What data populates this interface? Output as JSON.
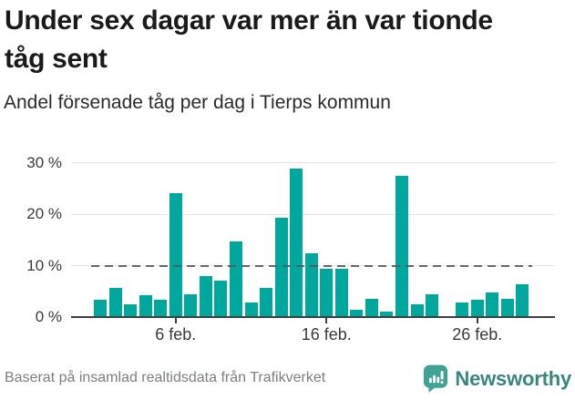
{
  "header": {
    "title": "Under sex dagar var mer än var tionde tåg sent",
    "subtitle": "Andel försenade tåg per dag i Tierps kommun"
  },
  "footer": {
    "source": "Baserat på insamlad realtidsdata från Trafikverket",
    "brand": "Newsworthy"
  },
  "colors": {
    "bar": "#00a79c",
    "reference_line": "#55565a",
    "gridline": "#e4e4e4",
    "axis": "#3f3f3f",
    "brand_icon": "#3fa295",
    "brand_text": "#38867e"
  },
  "chart_data": {
    "type": "bar",
    "title": "Under sex dagar var mer än var tionde tåg sent",
    "subtitle": "Andel försenade tåg per dag i Tierps kommun",
    "xlabel": "",
    "ylabel": "",
    "unit": "%",
    "ylim": [
      0,
      31
    ],
    "grid": "horizontal",
    "legend": "none",
    "reference_line": 10,
    "y_axis_ticks": [
      {
        "value": 0,
        "label": "0 %"
      },
      {
        "value": 10,
        "label": "10 %"
      },
      {
        "value": 20,
        "label": "20 %"
      },
      {
        "value": 30,
        "label": "30 %"
      }
    ],
    "x_axis_ticks": [
      {
        "day": 6,
        "label": "6 feb."
      },
      {
        "day": 16,
        "label": "16 feb."
      },
      {
        "day": 26,
        "label": "26 feb."
      }
    ],
    "points": [
      {
        "day": 1,
        "value": 3.3
      },
      {
        "day": 2,
        "value": 5.6
      },
      {
        "day": 3,
        "value": 2.5
      },
      {
        "day": 4,
        "value": 4.2
      },
      {
        "day": 5,
        "value": 3.3
      },
      {
        "day": 6,
        "value": 24.0
      },
      {
        "day": 7,
        "value": 4.5
      },
      {
        "day": 8,
        "value": 8.0
      },
      {
        "day": 9,
        "value": 7.0
      },
      {
        "day": 10,
        "value": 14.7
      },
      {
        "day": 11,
        "value": 2.8
      },
      {
        "day": 12,
        "value": 5.6
      },
      {
        "day": 13,
        "value": 19.3
      },
      {
        "day": 14,
        "value": 28.8
      },
      {
        "day": 15,
        "value": 12.4
      },
      {
        "day": 16,
        "value": 9.3
      },
      {
        "day": 17,
        "value": 9.3
      },
      {
        "day": 18,
        "value": 1.4
      },
      {
        "day": 19,
        "value": 3.5
      },
      {
        "day": 20,
        "value": 1.0
      },
      {
        "day": 21,
        "value": 27.4
      },
      {
        "day": 22,
        "value": 2.5
      },
      {
        "day": 23,
        "value": 4.4
      },
      {
        "day": 25,
        "value": 2.8
      },
      {
        "day": 26,
        "value": 3.3
      },
      {
        "day": 27,
        "value": 4.7
      },
      {
        "day": 28,
        "value": 3.5
      },
      {
        "day": 29,
        "value": 6.3
      }
    ]
  }
}
